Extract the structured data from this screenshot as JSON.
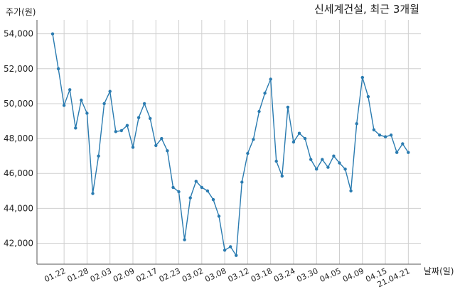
{
  "chart_data": {
    "type": "line",
    "title": "신세계건설, 최근 3개월",
    "ylabel": "주가(원)",
    "xlabel": "날짜(일)",
    "ylim": [
      40800,
      54800
    ],
    "y_ticks": [
      "42,000",
      "44,000",
      "46,000",
      "48,000",
      "50,000",
      "52,000",
      "54,000"
    ],
    "y_tick_values": [
      42000,
      44000,
      46000,
      48000,
      50000,
      52000,
      54000
    ],
    "x_ticks": [
      "01.22",
      "01.28",
      "02.03",
      "02.09",
      "02.17",
      "02.23",
      "03.02",
      "03.08",
      "03.12",
      "03.18",
      "03.24",
      "03.30",
      "04.05",
      "04.09",
      "04.15",
      "21.04.21"
    ],
    "x_tick_index": [
      2,
      6,
      10,
      14,
      18,
      22,
      26,
      30,
      34,
      38,
      42,
      46,
      50,
      54,
      58,
      62
    ],
    "grid": true,
    "series": [
      {
        "color": "#2a7bb0",
        "values": [
          54000,
          52000,
          49900,
          50800,
          48600,
          50200,
          49450,
          44850,
          47000,
          50000,
          50700,
          48400,
          48450,
          48750,
          47500,
          49200,
          50000,
          49150,
          47600,
          48000,
          47300,
          45200,
          44950,
          42200,
          44600,
          45550,
          45200,
          45000,
          44500,
          43550,
          41600,
          41800,
          41300,
          45500,
          47150,
          47950,
          49550,
          50600,
          51400,
          46700,
          45850,
          49800,
          47800,
          48300,
          48000,
          46800,
          46250,
          46800,
          46350,
          47000,
          46600,
          46250,
          45000,
          48850,
          51500,
          50400,
          48500,
          48200,
          48100,
          48200,
          47200,
          47700,
          47200
        ]
      }
    ]
  }
}
